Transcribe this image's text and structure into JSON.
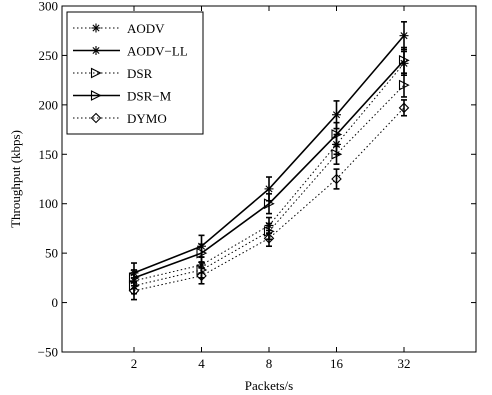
{
  "chart_data": {
    "type": "line",
    "title": "",
    "xlabel": "Packets/s",
    "ylabel": "Throughput (kbps)",
    "x": [
      "2",
      "4",
      "8",
      "16",
      "32"
    ],
    "ylim": [
      -50,
      300
    ],
    "yticks": [
      "−50",
      "0",
      "50",
      "100",
      "150",
      "200",
      "250",
      "300"
    ],
    "grid": false,
    "legend_position": "top-left",
    "series": [
      {
        "name": "AODV",
        "marker": "asterisk",
        "linestyle": "dotted",
        "values": [
          22,
          38,
          78,
          160,
          242
        ],
        "errors": [
          8,
          8,
          8,
          10,
          12
        ]
      },
      {
        "name": "AODV−LL",
        "marker": "asterisk",
        "linestyle": "solid",
        "values": [
          30,
          57,
          115,
          190,
          270
        ],
        "errors": [
          10,
          11,
          12,
          14,
          14
        ]
      },
      {
        "name": "DSR",
        "marker": "triangle-right",
        "linestyle": "dotted",
        "values": [
          17,
          33,
          72,
          150,
          220
        ],
        "errors": [
          8,
          8,
          8,
          10,
          12
        ]
      },
      {
        "name": "DSR−M",
        "marker": "triangle-right",
        "linestyle": "solid",
        "values": [
          25,
          50,
          100,
          170,
          245
        ],
        "errors": [
          8,
          9,
          10,
          12,
          13
        ]
      },
      {
        "name": "DYMO",
        "marker": "diamond",
        "linestyle": "dotted",
        "values": [
          12,
          27,
          65,
          125,
          197
        ],
        "errors": [
          9,
          8,
          8,
          10,
          8
        ]
      }
    ]
  }
}
